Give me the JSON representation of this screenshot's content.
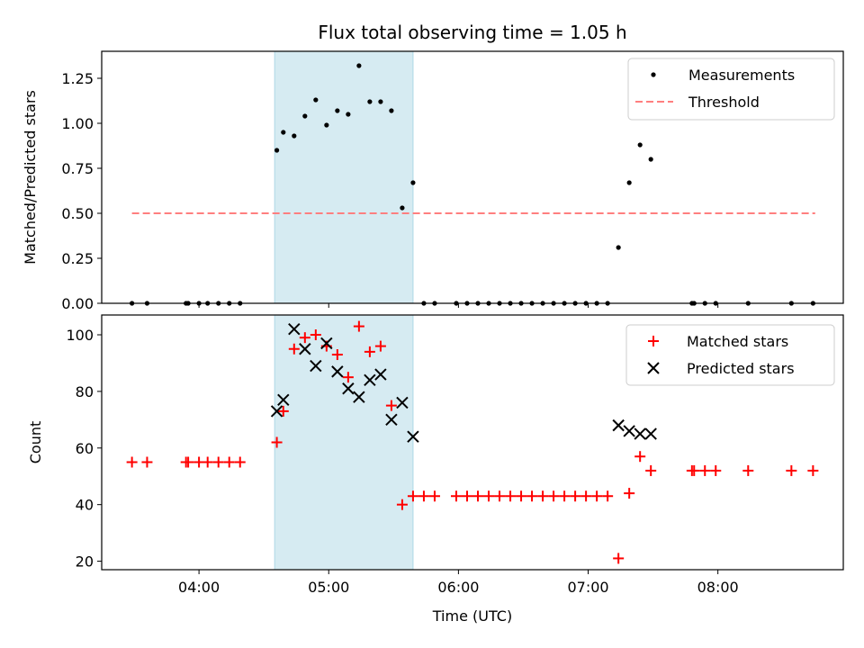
{
  "title": "Flux total observing time = 1.05 h",
  "colors": {
    "measurement": "#000000",
    "threshold": "#ff7f7f",
    "matched": "#ff0000",
    "predicted": "#000000",
    "span_fill": "#add8e6"
  },
  "chart_data": [
    {
      "type": "scatter",
      "ylabel": "Matched/Predicted stars",
      "xlabel": "",
      "ylim": [
        0,
        1.4
      ],
      "yticks": [
        0.0,
        0.25,
        0.5,
        0.75,
        1.0,
        1.25
      ],
      "ytick_labels": [
        "0.00",
        "0.25",
        "0.50",
        "0.75",
        "1.00",
        "1.25"
      ],
      "xlim": [
        "03:15",
        "08:58"
      ],
      "highlight_span": [
        "04:35",
        "05:39"
      ],
      "threshold": {
        "y": 0.5,
        "x_start": "03:29",
        "x_end": "08:45"
      },
      "legend_position": "top-right",
      "legend": [
        "Measurements",
        "Threshold"
      ],
      "series": [
        {
          "name": "Measurements",
          "x": [
            "03:29",
            "03:36",
            "03:54",
            "03:55",
            "04:00",
            "04:04",
            "04:09",
            "04:14",
            "04:19",
            "04:36",
            "04:39",
            "04:44",
            "04:49",
            "04:54",
            "04:59",
            "05:04",
            "05:09",
            "05:14",
            "05:19",
            "05:24",
            "05:29",
            "05:34",
            "05:39",
            "05:44",
            "05:49",
            "05:59",
            "06:04",
            "06:09",
            "06:14",
            "06:19",
            "06:24",
            "06:29",
            "06:34",
            "06:39",
            "06:44",
            "06:49",
            "06:54",
            "06:59",
            "07:04",
            "07:09",
            "07:14",
            "07:19",
            "07:24",
            "07:29",
            "07:48",
            "07:49",
            "07:54",
            "07:59",
            "08:14",
            "08:34",
            "08:44"
          ],
          "y": [
            0,
            0,
            0,
            0,
            0,
            0,
            0,
            0,
            0,
            0.85,
            0.95,
            0.93,
            1.04,
            1.13,
            0.99,
            1.07,
            1.05,
            1.32,
            1.12,
            1.12,
            1.07,
            0.53,
            0.67,
            0,
            0,
            0,
            0,
            0,
            0,
            0,
            0,
            0,
            0,
            0,
            0,
            0,
            0,
            0,
            0,
            0,
            0.31,
            0.67,
            0.88,
            0.8,
            0,
            0,
            0,
            0,
            0,
            0,
            0
          ]
        }
      ]
    },
    {
      "type": "scatter",
      "ylabel": "Count",
      "xlabel": "Time (UTC)",
      "ylim": [
        17,
        107
      ],
      "yticks": [
        20,
        40,
        60,
        80,
        100
      ],
      "ytick_labels": [
        "20",
        "40",
        "60",
        "80",
        "100"
      ],
      "xticks": [
        "04:00",
        "05:00",
        "06:00",
        "07:00",
        "08:00"
      ],
      "xtick_labels": [
        "04:00",
        "05:00",
        "06:00",
        "07:00",
        "08:00"
      ],
      "xlim": [
        "03:15",
        "08:58"
      ],
      "highlight_span": [
        "04:35",
        "05:39"
      ],
      "legend_position": "top-right",
      "legend": [
        "Matched stars",
        "Predicted stars"
      ],
      "series": [
        {
          "name": "Matched stars",
          "x": [
            "03:29",
            "03:36",
            "03:54",
            "03:55",
            "04:00",
            "04:04",
            "04:09",
            "04:14",
            "04:19",
            "04:36",
            "04:39",
            "04:44",
            "04:49",
            "04:54",
            "04:59",
            "05:04",
            "05:09",
            "05:14",
            "05:19",
            "05:24",
            "05:29",
            "05:34",
            "05:39",
            "05:44",
            "05:49",
            "05:59",
            "06:04",
            "06:09",
            "06:14",
            "06:19",
            "06:24",
            "06:29",
            "06:34",
            "06:39",
            "06:44",
            "06:49",
            "06:54",
            "06:59",
            "07:04",
            "07:09",
            "07:14",
            "07:19",
            "07:24",
            "07:29",
            "07:48",
            "07:49",
            "07:54",
            "07:59",
            "08:14",
            "08:34",
            "08:44"
          ],
          "y": [
            55,
            55,
            55,
            55,
            55,
            55,
            55,
            55,
            55,
            62,
            73,
            95,
            99,
            100,
            96,
            93,
            85,
            103,
            94,
            96,
            75,
            40,
            43,
            43,
            43,
            43,
            43,
            43,
            43,
            43,
            43,
            43,
            43,
            43,
            43,
            43,
            43,
            43,
            43,
            43,
            21,
            44,
            57,
            52,
            52,
            52,
            52,
            52,
            52,
            52,
            52
          ]
        },
        {
          "name": "Predicted stars",
          "x": [
            "04:36",
            "04:39",
            "04:44",
            "04:49",
            "04:54",
            "04:59",
            "05:04",
            "05:09",
            "05:14",
            "05:19",
            "05:24",
            "05:29",
            "05:34",
            "05:39",
            "07:14",
            "07:19",
            "07:24",
            "07:29"
          ],
          "y": [
            73,
            77,
            102,
            95,
            89,
            97,
            87,
            81,
            78,
            84,
            86,
            70,
            76,
            64,
            68,
            66,
            65,
            65
          ]
        }
      ]
    }
  ]
}
